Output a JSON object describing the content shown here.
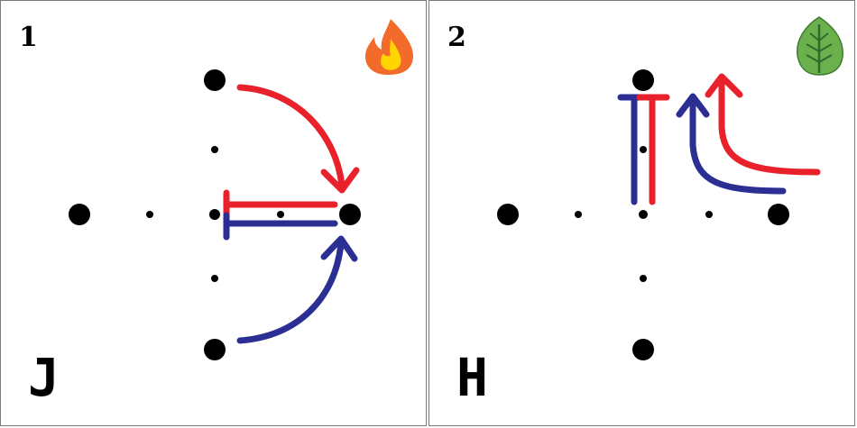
{
  "panels": [
    {
      "number": "1",
      "letter": "J",
      "icon": "fire-icon",
      "colors": {
        "red": "#e8212b",
        "blue": "#2b2f93",
        "dot": "#000000",
        "fire_outer": "#f26b2a",
        "fire_inner": "#ffd400"
      }
    },
    {
      "number": "2",
      "letter": "H",
      "icon": "leaf-icon",
      "colors": {
        "red": "#e8212b",
        "blue": "#2b2f93",
        "dot": "#000000",
        "leaf": "#6ab04c",
        "leaf_vein": "#2f6b2a"
      }
    }
  ]
}
